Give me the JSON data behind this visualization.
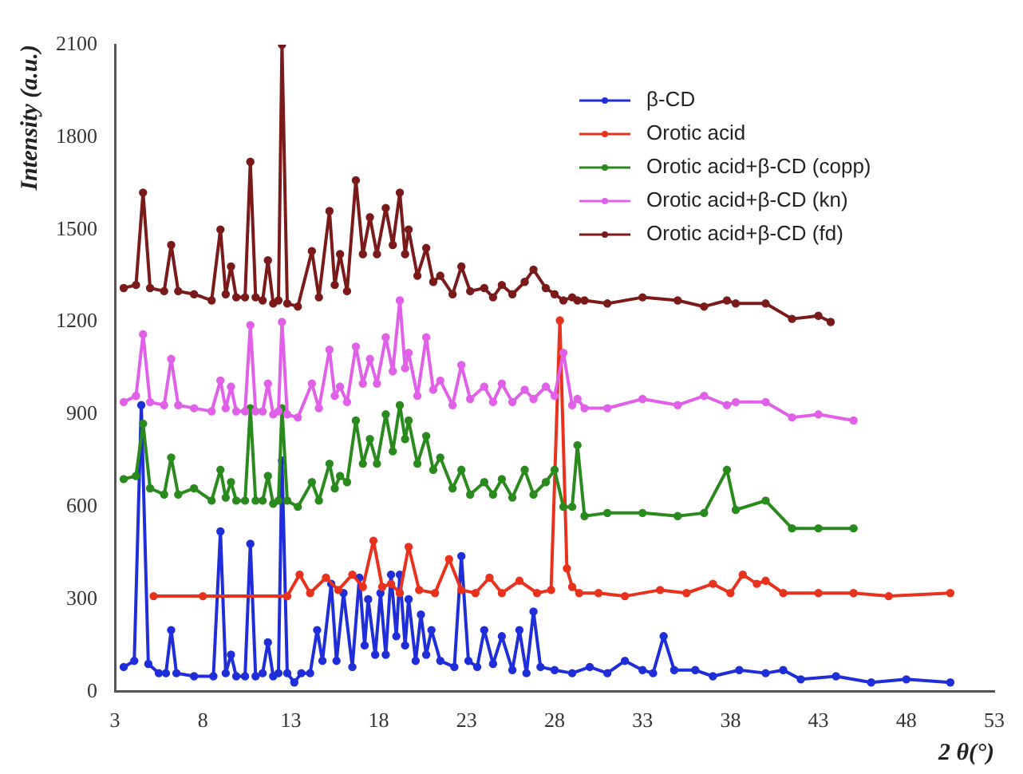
{
  "chart_data": {
    "type": "line",
    "xlabel": "2 θ(°)",
    "ylabel": "Intensity (a.u.)",
    "xlim": [
      3,
      53
    ],
    "xticks": [
      3,
      8,
      13,
      18,
      23,
      28,
      33,
      38,
      43,
      48,
      53
    ],
    "ylim": [
      0,
      2100
    ],
    "yticks": [
      0,
      300,
      600,
      900,
      1200,
      1500,
      1800,
      2100
    ],
    "grid": false,
    "legend": "top right",
    "marker": "circle",
    "line_style": "solid",
    "series": [
      {
        "name": "β-CD",
        "color": "#1f2ed8",
        "x": [
          3.5,
          4.1,
          4.5,
          4.9,
          5.5,
          5.9,
          6.2,
          6.5,
          7.5,
          8.6,
          9.0,
          9.3,
          9.6,
          9.9,
          10.4,
          10.7,
          11.0,
          11.4,
          11.7,
          12.0,
          12.3,
          12.5,
          12.8,
          13.2,
          13.6,
          14.1,
          14.5,
          14.8,
          15.3,
          15.6,
          16.0,
          16.5,
          16.9,
          17.2,
          17.4,
          17.8,
          18.1,
          18.4,
          18.7,
          19.0,
          19.2,
          19.5,
          19.7,
          20.1,
          20.4,
          20.7,
          21.0,
          21.5,
          22.3,
          22.7,
          23.1,
          23.6,
          24.0,
          24.5,
          25.0,
          25.6,
          26.0,
          26.4,
          26.8,
          27.2,
          28.0,
          29.0,
          30.0,
          31.0,
          32.0,
          33.0,
          33.6,
          34.2,
          34.8,
          36.0,
          37.0,
          38.5,
          40.0,
          41.0,
          42.0,
          44.0,
          46.0,
          48.0,
          50.5
        ],
        "values": [
          80,
          100,
          930,
          90,
          60,
          60,
          200,
          60,
          50,
          50,
          520,
          60,
          120,
          50,
          50,
          480,
          50,
          60,
          160,
          50,
          60,
          750,
          60,
          30,
          60,
          60,
          200,
          100,
          350,
          100,
          320,
          80,
          370,
          150,
          300,
          120,
          320,
          120,
          380,
          180,
          380,
          150,
          300,
          100,
          250,
          120,
          200,
          100,
          80,
          440,
          100,
          80,
          200,
          90,
          180,
          70,
          200,
          60,
          260,
          80,
          70,
          60,
          80,
          60,
          100,
          70,
          60,
          180,
          70,
          70,
          50,
          70,
          60,
          70,
          40,
          50,
          30,
          40,
          30
        ]
      },
      {
        "name": "Orotic acid",
        "color": "#e8321e",
        "x": [
          5.2,
          8,
          12.8,
          13.5,
          14.1,
          15.0,
          15.7,
          16.5,
          17.1,
          17.7,
          18.2,
          18.7,
          19.2,
          19.7,
          20.3,
          21.2,
          22.0,
          22.7,
          23.5,
          24.3,
          25.0,
          26.0,
          27.0,
          27.8,
          28.3,
          28.7,
          29.0,
          29.4,
          30.5,
          32,
          34,
          35.5,
          37,
          38,
          38.7,
          39.5,
          40,
          41,
          43,
          45,
          47,
          50.5
        ],
        "values": [
          310,
          310,
          310,
          380,
          320,
          370,
          330,
          380,
          340,
          490,
          340,
          350,
          320,
          470,
          330,
          320,
          430,
          330,
          320,
          370,
          320,
          360,
          320,
          330,
          1205,
          400,
          340,
          320,
          320,
          310,
          330,
          320,
          350,
          320,
          380,
          350,
          360,
          320,
          320,
          320,
          310,
          320
        ]
      },
      {
        "name": "Orotic acid+β-CD (copp)",
        "color": "#2a8a1e",
        "x": [
          3.5,
          4.2,
          4.6,
          5.0,
          5.8,
          6.2,
          6.6,
          7.5,
          8.5,
          9.0,
          9.3,
          9.6,
          9.9,
          10.4,
          10.7,
          11.0,
          11.4,
          11.7,
          12.0,
          12.3,
          12.5,
          12.8,
          13.4,
          14.2,
          14.6,
          15.2,
          15.5,
          15.8,
          16.2,
          16.7,
          17.1,
          17.5,
          17.9,
          18.4,
          18.8,
          19.2,
          19.5,
          19.7,
          20.2,
          20.7,
          21.1,
          21.5,
          22.2,
          22.7,
          23.2,
          24.0,
          24.5,
          25.0,
          25.6,
          26.3,
          26.8,
          27.5,
          28.0,
          28.5,
          29.0,
          29.3,
          29.7,
          31,
          33,
          35,
          36.5,
          37.8,
          38.3,
          40,
          41.5,
          43,
          45
        ],
        "values": [
          690,
          700,
          870,
          660,
          640,
          760,
          640,
          660,
          620,
          720,
          630,
          680,
          620,
          620,
          920,
          620,
          620,
          700,
          610,
          620,
          920,
          620,
          600,
          680,
          620,
          740,
          660,
          700,
          680,
          880,
          740,
          820,
          740,
          900,
          780,
          930,
          820,
          880,
          740,
          830,
          720,
          760,
          660,
          720,
          640,
          680,
          640,
          690,
          630,
          720,
          640,
          680,
          720,
          600,
          600,
          800,
          570,
          580,
          580,
          570,
          580,
          720,
          590,
          620,
          530,
          530,
          530
        ]
      },
      {
        "name": "Orotic acid+β-CD (kn)",
        "color": "#e060e8",
        "x": [
          3.5,
          4.2,
          4.6,
          5.0,
          5.8,
          6.2,
          6.6,
          7.5,
          8.5,
          9.0,
          9.3,
          9.6,
          9.9,
          10.4,
          10.7,
          11.0,
          11.4,
          11.7,
          12.0,
          12.3,
          12.5,
          12.8,
          13.4,
          14.2,
          14.6,
          15.2,
          15.5,
          15.8,
          16.2,
          16.7,
          17.1,
          17.5,
          17.9,
          18.4,
          18.8,
          19.2,
          19.5,
          19.7,
          20.2,
          20.7,
          21.1,
          21.5,
          22.2,
          22.7,
          23.2,
          24.0,
          24.5,
          25.0,
          25.6,
          26.3,
          26.8,
          27.5,
          28.0,
          28.5,
          29.0,
          29.3,
          29.7,
          31,
          33,
          35,
          36.5,
          37.8,
          38.3,
          40,
          41.5,
          43,
          45
        ],
        "values": [
          940,
          960,
          1160,
          940,
          930,
          1080,
          930,
          920,
          910,
          1010,
          920,
          990,
          910,
          910,
          1190,
          910,
          910,
          1000,
          900,
          910,
          1200,
          900,
          890,
          1000,
          920,
          1110,
          960,
          990,
          940,
          1120,
          1000,
          1080,
          1000,
          1150,
          1040,
          1270,
          1050,
          1100,
          960,
          1150,
          980,
          1010,
          930,
          1060,
          950,
          990,
          940,
          1000,
          940,
          980,
          950,
          990,
          960,
          1100,
          930,
          950,
          920,
          920,
          950,
          930,
          960,
          930,
          940,
          940,
          890,
          900,
          880
        ]
      },
      {
        "name": "Orotic acid+β-CD (fd)",
        "color": "#7a1a1a",
        "x": [
          3.5,
          4.2,
          4.6,
          5.0,
          5.8,
          6.2,
          6.6,
          7.5,
          8.5,
          9.0,
          9.3,
          9.6,
          9.9,
          10.4,
          10.7,
          11.0,
          11.4,
          11.7,
          12.0,
          12.3,
          12.5,
          12.8,
          13.4,
          14.2,
          14.6,
          15.2,
          15.5,
          15.8,
          16.2,
          16.7,
          17.1,
          17.5,
          17.9,
          18.4,
          18.8,
          19.2,
          19.5,
          19.7,
          20.2,
          20.7,
          21.1,
          21.5,
          22.2,
          22.7,
          23.2,
          24.0,
          24.5,
          25.0,
          25.6,
          26.3,
          26.8,
          27.5,
          28.0,
          28.5,
          29.0,
          29.3,
          29.7,
          31,
          33,
          35,
          36.5,
          37.8,
          38.3,
          40,
          41.5,
          43,
          43.7
        ],
        "values": [
          1310,
          1320,
          1620,
          1310,
          1300,
          1450,
          1300,
          1290,
          1270,
          1500,
          1290,
          1380,
          1280,
          1280,
          1720,
          1280,
          1270,
          1400,
          1260,
          1270,
          2100,
          1260,
          1250,
          1430,
          1280,
          1560,
          1320,
          1420,
          1300,
          1660,
          1420,
          1540,
          1420,
          1570,
          1450,
          1620,
          1420,
          1500,
          1350,
          1440,
          1330,
          1350,
          1290,
          1380,
          1300,
          1310,
          1280,
          1320,
          1290,
          1330,
          1370,
          1310,
          1290,
          1270,
          1280,
          1270,
          1270,
          1260,
          1280,
          1270,
          1250,
          1270,
          1260,
          1260,
          1210,
          1220,
          1200
        ]
      }
    ]
  }
}
